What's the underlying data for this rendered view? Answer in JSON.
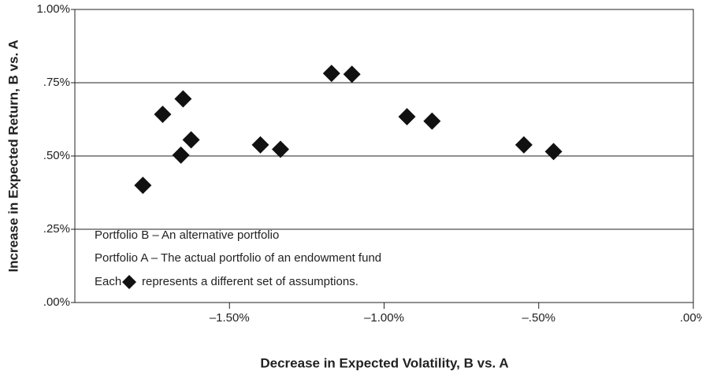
{
  "chart_data": {
    "type": "scatter",
    "xlabel": "Decrease in Expected Volatility, B vs. A",
    "ylabel": "Increase in Expected Return, B vs. A",
    "x": [
      -1.78,
      -1.716,
      -1.657,
      -1.65,
      -1.624,
      -1.4,
      -1.335,
      -1.17,
      -1.104,
      -0.926,
      -0.845,
      -0.548,
      -0.452
    ],
    "values": [
      0.4,
      0.642,
      0.503,
      0.695,
      0.555,
      0.538,
      0.523,
      0.782,
      0.779,
      0.634,
      0.619,
      0.538,
      0.515
    ],
    "color": "#111111",
    "xlim": [
      -2,
      0
    ],
    "xticks": [
      {
        "value": -1.5,
        "label": "–1.50%"
      },
      {
        "value": -1.0,
        "label": "–1.00%"
      },
      {
        "value": -0.5,
        "label": "–.50%"
      },
      {
        "value": 0,
        "label": ".00%"
      }
    ],
    "ylim": [
      0,
      1
    ],
    "yticks": [
      {
        "value": 0,
        "label": ".00%"
      },
      {
        "value": 0.25,
        "label": ".25%"
      },
      {
        "value": 0.5,
        "label": ".50%"
      },
      {
        "value": 0.75,
        "label": ".75%"
      },
      {
        "value": 1,
        "label": "1.00%"
      }
    ],
    "grid": true,
    "annotations": [
      "Portfolio B – An alternative portfolio",
      "Portfolio A – The actual portfolio of an endowment fund",
      "Each",
      "represents a different set of assumptions."
    ]
  }
}
